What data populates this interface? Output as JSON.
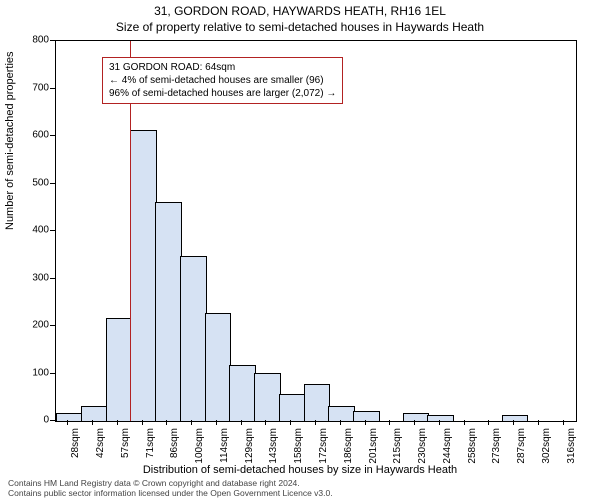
{
  "title_line1": "31, GORDON ROAD, HAYWARDS HEATH, RH16 1EL",
  "title_line2": "Size of property relative to semi-detached houses in Haywards Heath",
  "ylabel": "Number of semi-detached properties",
  "xlabel": "Distribution of semi-detached houses by size in Haywards Heath",
  "footer_line1": "Contains HM Land Registry data © Crown copyright and database right 2024.",
  "footer_line2": "Contains public sector information licensed under the Open Government Licence v3.0.",
  "chart": {
    "type": "bar",
    "ylim": [
      0,
      800
    ],
    "yticks": [
      0,
      100,
      200,
      300,
      400,
      500,
      600,
      700,
      800
    ],
    "x_categories": [
      "28sqm",
      "42sqm",
      "57sqm",
      "71sqm",
      "86sqm",
      "100sqm",
      "114sqm",
      "129sqm",
      "143sqm",
      "158sqm",
      "172sqm",
      "186sqm",
      "201sqm",
      "215sqm",
      "230sqm",
      "244sqm",
      "258sqm",
      "273sqm",
      "287sqm",
      "302sqm",
      "316sqm"
    ],
    "values": [
      15,
      30,
      215,
      610,
      460,
      345,
      225,
      115,
      100,
      55,
      75,
      30,
      20,
      0,
      15,
      10,
      0,
      0,
      10,
      0,
      0
    ],
    "bar_fill": "#d6e2f3",
    "bar_stroke": "#000000",
    "bar_width_ratio": 1.0,
    "background_color": "#ffffff",
    "axis_color": "#000000",
    "tick_fontsize": 10,
    "label_fontsize": 11,
    "title_fontsize": 12
  },
  "marker": {
    "x_value_sqm": 64,
    "color": "#b22222"
  },
  "info_box": {
    "line1": "31 GORDON ROAD: 64sqm",
    "line2": "← 4% of semi-detached houses are smaller (96)",
    "line3": "96% of semi-detached houses are larger (2,072) →",
    "border_color": "#b22222"
  }
}
